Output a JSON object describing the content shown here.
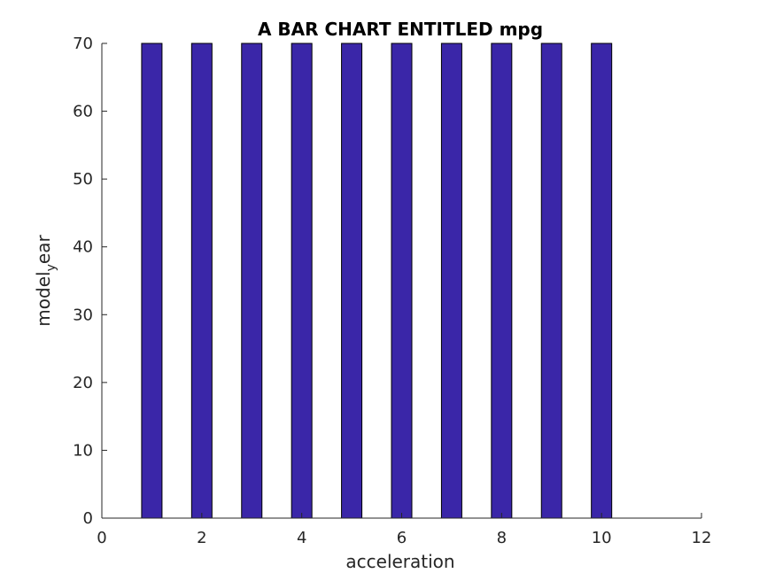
{
  "chart_data": {
    "type": "bar",
    "title": "A BAR CHART ENTITLED mpg",
    "xlabel": "acceleration",
    "ylabel": {
      "main": "model",
      "subscript": "y",
      "rest": "ear"
    },
    "x": [
      1,
      2,
      3,
      4,
      5,
      6,
      7,
      8,
      9,
      10
    ],
    "values": [
      70,
      70,
      70,
      70,
      70,
      70,
      70,
      70,
      70,
      70
    ],
    "xlim": [
      0,
      12
    ],
    "ylim": [
      0,
      70
    ],
    "xticks": [
      "0",
      "2",
      "4",
      "6",
      "8",
      "10",
      "12"
    ],
    "yticks": [
      "0",
      "10",
      "20",
      "30",
      "40",
      "50",
      "60",
      "70"
    ],
    "bar_color": "#3a26a8",
    "grid": false
  }
}
